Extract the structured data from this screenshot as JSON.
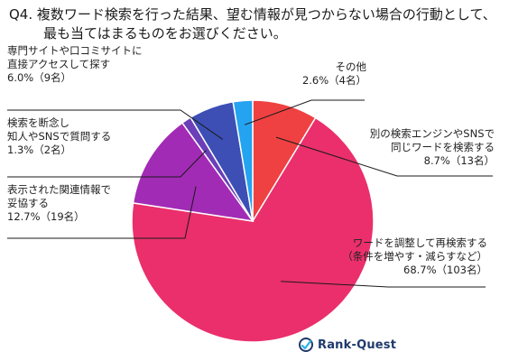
{
  "title": {
    "line1": "Q4. 複数ワード検索を行った結果、望む情報が見つからない場合の行動として、",
    "line2": "最も当てはまるものをお選びください。"
  },
  "chart_data": {
    "type": "pie",
    "start": "top",
    "direction": "clockwise",
    "slices": [
      {
        "label": [
          "別の検索エンジンやSNSで",
          "同じワードを検索する"
        ],
        "value_text": "8.7%（13名）",
        "value": 8.7,
        "count": 13,
        "color": "#ef4141"
      },
      {
        "label": [
          "ワードを調整して再検索する",
          "（条件を増やす・減らすなど）"
        ],
        "value_text": "68.7%（103名）",
        "value": 68.7,
        "count": 103,
        "color": "#ea2f6c"
      },
      {
        "label": [
          "表示された関連情報で",
          "妥協する"
        ],
        "value_text": "12.7%（19名）",
        "value": 12.7,
        "count": 19,
        "color": "#a22bb5"
      },
      {
        "label": [
          "検索を断念し",
          "知人やSNSで質問する"
        ],
        "value_text": "1.3%（2名）",
        "value": 1.3,
        "count": 2,
        "color": "#6a3fb8"
      },
      {
        "label": [
          "専門サイトや口コミサイトに",
          "直接アクセスして探す"
        ],
        "value_text": "6.0%（9名）",
        "value": 6.0,
        "count": 9,
        "color": "#3d4fb5"
      },
      {
        "label": [
          "その他"
        ],
        "value_text": "2.6%（4名）",
        "value": 2.6,
        "count": 4,
        "color": "#23a3f0"
      }
    ]
  },
  "logo": {
    "text": "Rank-Quest",
    "icon": "rank-quest-logo-icon",
    "color": "#1f3a6b"
  }
}
